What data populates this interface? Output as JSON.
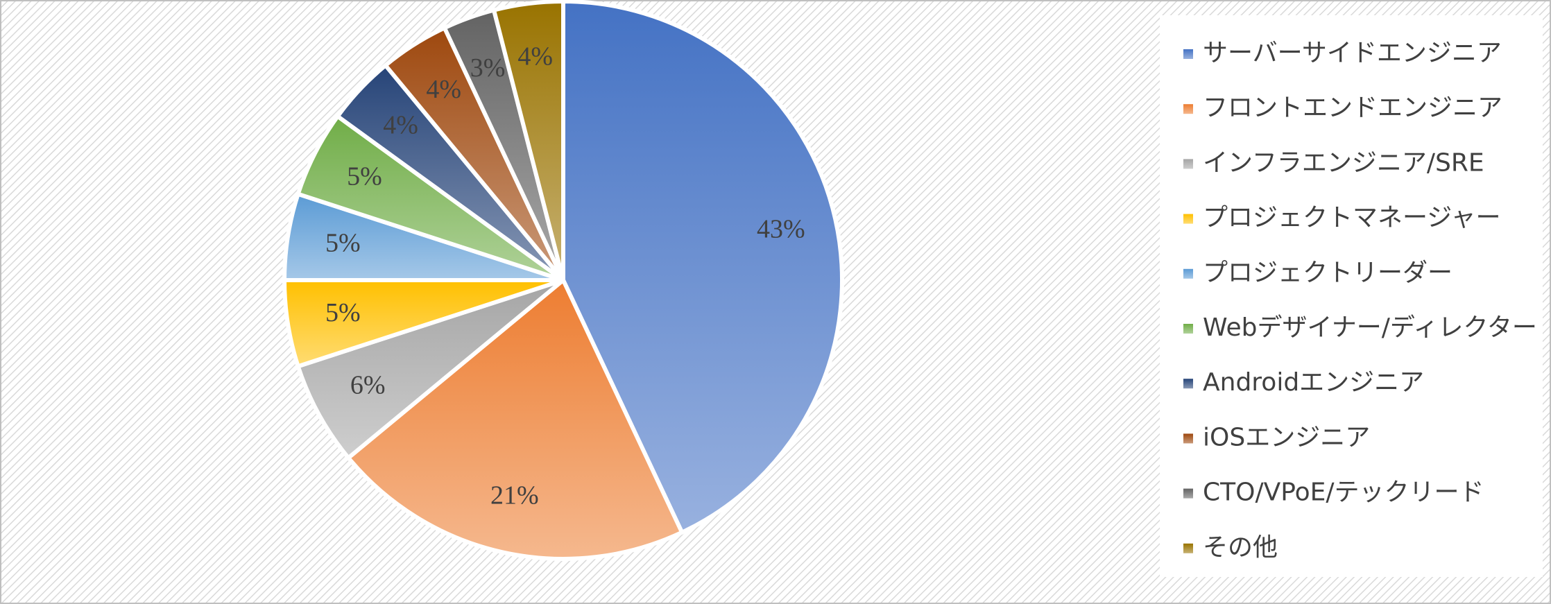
{
  "chart_data": {
    "type": "pie",
    "categories": [
      "サーバーサイドエンジニア",
      "フロントエンドエンジニア",
      "インフラエンジニア/SRE",
      "プロジェクトマネージャー",
      "プロジェクトリーダー",
      "Webデザイナー/ディレクター",
      "Androidエンジニア",
      "iOSエンジニア",
      "CTO/VPoE/テックリード",
      "その他"
    ],
    "values": [
      43,
      21,
      6,
      5,
      5,
      5,
      4,
      4,
      3,
      4
    ],
    "value_labels": [
      "43%",
      "21%",
      "6%",
      "5%",
      "5%",
      "5%",
      "4%",
      "4%",
      "3%",
      "4%"
    ],
    "colors": [
      "#4472c4",
      "#ed7d31",
      "#a5a5a5",
      "#ffc000",
      "#5b9bd5",
      "#70ad47",
      "#264478",
      "#9e480e",
      "#636363",
      "#997300"
    ],
    "legend": "right"
  }
}
